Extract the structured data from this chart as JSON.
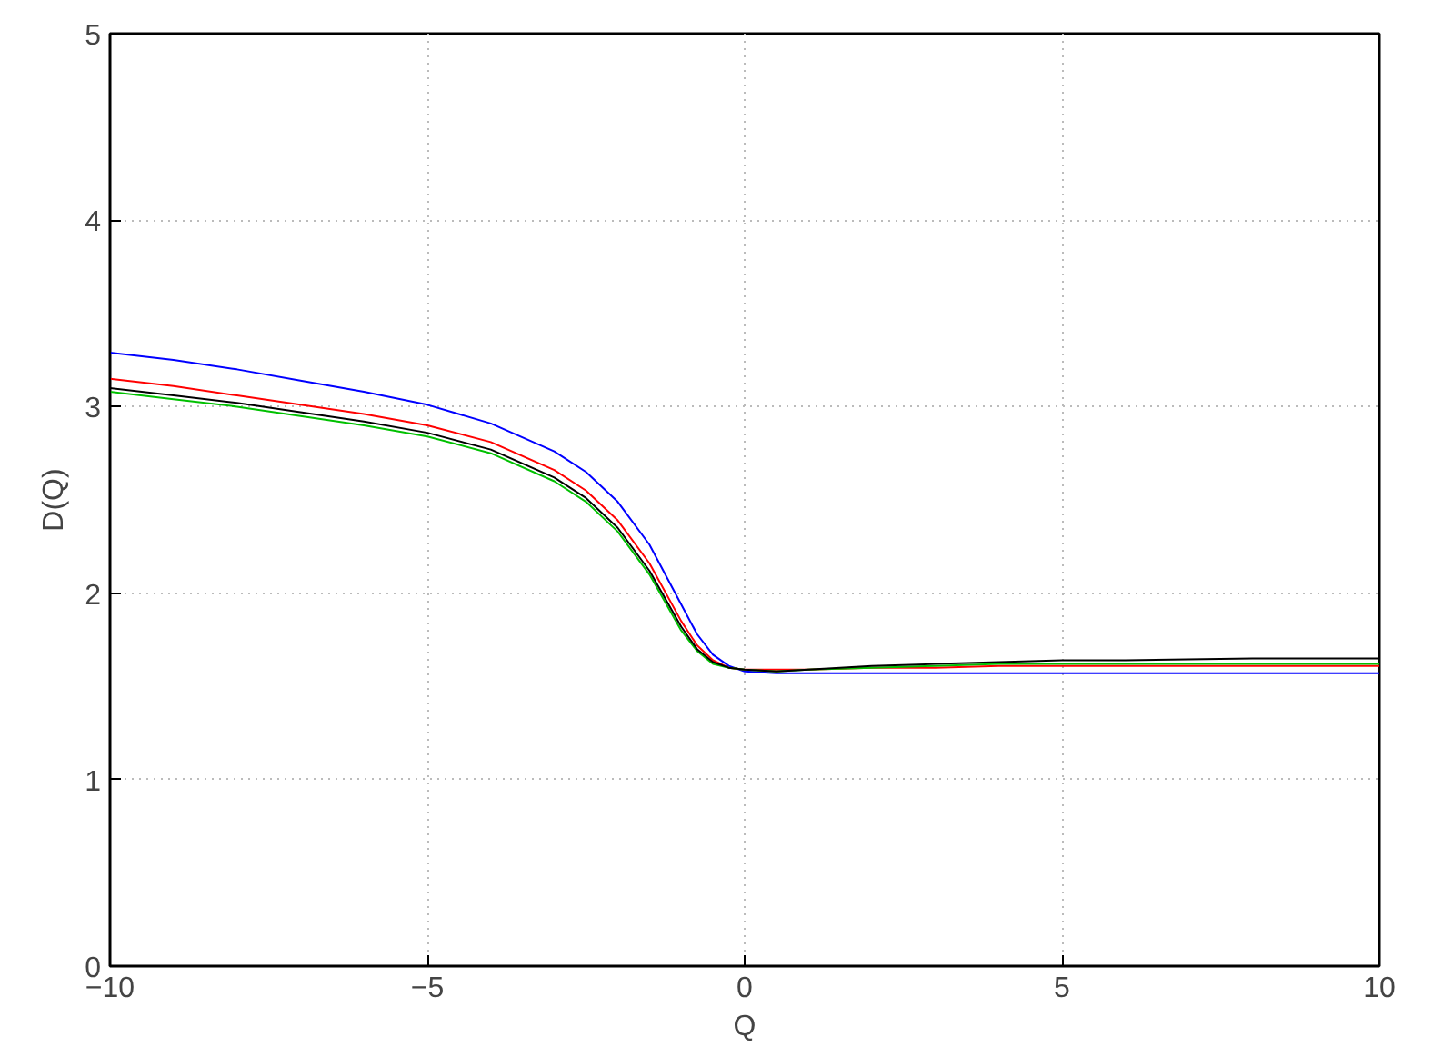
{
  "chart_data": {
    "type": "line",
    "xlabel": "Q",
    "ylabel": "D(Q)",
    "x": [
      -10,
      -9,
      -8,
      -7,
      -6,
      -5,
      -4,
      -3,
      -2.5,
      -2,
      -1.5,
      -1,
      -0.75,
      -0.5,
      -0.25,
      0,
      0.5,
      1,
      2,
      3,
      4,
      5,
      6,
      8,
      10
    ],
    "series": [
      {
        "color": "#0000ff",
        "values": [
          3.29,
          3.25,
          3.2,
          3.14,
          3.08,
          3.01,
          2.91,
          2.76,
          2.65,
          2.49,
          2.26,
          1.94,
          1.78,
          1.67,
          1.61,
          1.58,
          1.57,
          1.57,
          1.57,
          1.57,
          1.57,
          1.57,
          1.57,
          1.57,
          1.57
        ]
      },
      {
        "color": "#ff0000",
        "values": [
          3.15,
          3.11,
          3.06,
          3.01,
          2.96,
          2.9,
          2.81,
          2.66,
          2.55,
          2.39,
          2.16,
          1.85,
          1.72,
          1.64,
          1.6,
          1.59,
          1.59,
          1.59,
          1.6,
          1.6,
          1.61,
          1.61,
          1.61,
          1.61,
          1.61
        ]
      },
      {
        "color": "#00c000",
        "values": [
          3.08,
          3.04,
          3.0,
          2.95,
          2.9,
          2.84,
          2.75,
          2.6,
          2.49,
          2.33,
          2.1,
          1.8,
          1.69,
          1.62,
          1.6,
          1.59,
          1.58,
          1.59,
          1.6,
          1.61,
          1.62,
          1.62,
          1.62,
          1.62,
          1.62
        ]
      },
      {
        "color": "#000000",
        "values": [
          3.1,
          3.06,
          3.02,
          2.97,
          2.92,
          2.86,
          2.77,
          2.62,
          2.51,
          2.35,
          2.12,
          1.82,
          1.7,
          1.63,
          1.6,
          1.59,
          1.58,
          1.59,
          1.61,
          1.62,
          1.63,
          1.64,
          1.64,
          1.65,
          1.65
        ]
      }
    ],
    "xlim": [
      -10,
      10
    ],
    "ylim": [
      0,
      5
    ],
    "xticks": [
      -10,
      -5,
      0,
      5,
      10
    ],
    "yticks": [
      0,
      1,
      2,
      3,
      4,
      5
    ],
    "grid": true,
    "marker": "none",
    "line_style": "solid"
  }
}
